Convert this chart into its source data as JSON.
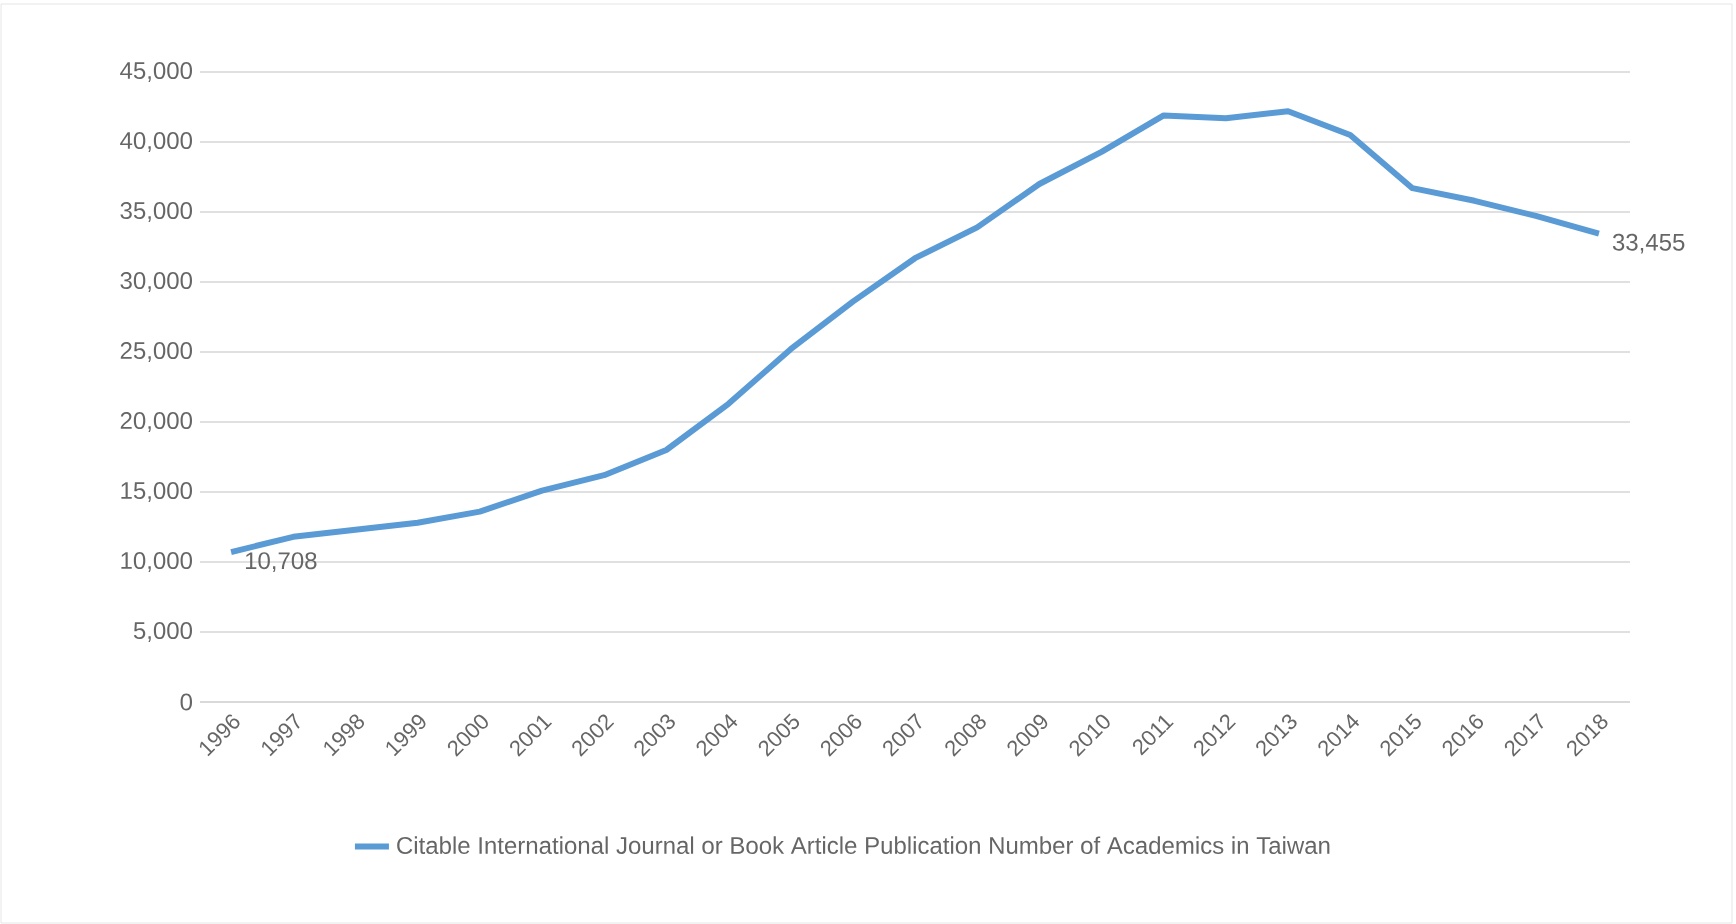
{
  "chart_data": {
    "type": "line",
    "categories": [
      "1996",
      "1997",
      "1998",
      "1999",
      "2000",
      "2001",
      "2002",
      "2003",
      "2004",
      "2005",
      "2006",
      "2007",
      "2008",
      "2009",
      "2010",
      "2011",
      "2012",
      "2013",
      "2014",
      "2015",
      "2016",
      "2017",
      "2018"
    ],
    "series": [
      {
        "name": "Citable International Journal or Book Article Publication Number of Academics in Taiwan",
        "color": "#5b9bd5",
        "values": [
          10708,
          11800,
          12300,
          12800,
          13600,
          15100,
          16200,
          18000,
          21300,
          25200,
          28600,
          31700,
          33900,
          37000,
          39300,
          41900,
          41700,
          42200,
          40500,
          36700,
          35800,
          34700,
          33455
        ],
        "value_labels": [
          "10,708",
          null,
          null,
          null,
          null,
          null,
          null,
          null,
          null,
          null,
          null,
          null,
          null,
          null,
          null,
          null,
          null,
          null,
          null,
          null,
          null,
          null,
          "33,455"
        ]
      }
    ],
    "ylim": [
      0,
      45000
    ],
    "yticks": [
      {
        "value": 0,
        "label": "0"
      },
      {
        "value": 5000,
        "label": "5,000"
      },
      {
        "value": 10000,
        "label": "10,000"
      },
      {
        "value": 15000,
        "label": "15,000"
      },
      {
        "value": 20000,
        "label": "20,000"
      },
      {
        "value": 25000,
        "label": "25,000"
      },
      {
        "value": 30000,
        "label": "30,000"
      },
      {
        "value": 35000,
        "label": "35,000"
      },
      {
        "value": 40000,
        "label": "40,000"
      },
      {
        "value": 45000,
        "label": "45,000"
      }
    ],
    "grid": "y",
    "legend": "bottom",
    "marker": "none",
    "line_style": "solid"
  }
}
